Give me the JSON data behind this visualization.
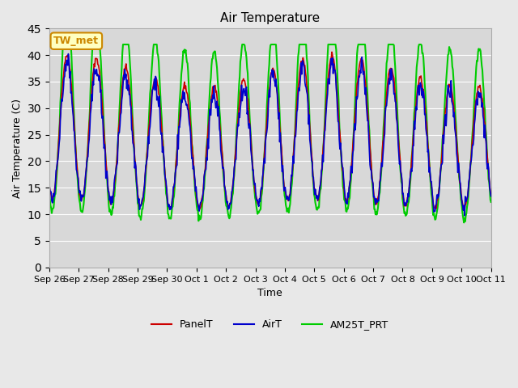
{
  "title": "Air Temperature",
  "ylabel": "Air Temperature (C)",
  "xlabel": "Time",
  "annotation": "TW_met",
  "ylim": [
    0,
    45
  ],
  "yticks": [
    0,
    5,
    10,
    15,
    20,
    25,
    30,
    35,
    40,
    45
  ],
  "xtick_labels": [
    "Sep 26",
    "Sep 27",
    "Sep 28",
    "Sep 29",
    "Sep 30",
    "Oct 1",
    "Oct 2",
    "Oct 3",
    "Oct 4",
    "Oct 5",
    "Oct 6",
    "Oct 7",
    "Oct 8",
    "Oct 9",
    "Oct 10",
    "Oct 11"
  ],
  "colors": {
    "PanelT": "#cc0000",
    "AirT": "#0000cc",
    "AM25T_PRT": "#00cc00",
    "bg_outer": "#e8e8e8",
    "bg_inner": "#d8d8d8",
    "annotation_bg": "#ffffc0",
    "annotation_border": "#cc8800"
  },
  "line_widths": {
    "PanelT": 1.2,
    "AirT": 1.2,
    "AM25T_PRT": 1.5
  }
}
